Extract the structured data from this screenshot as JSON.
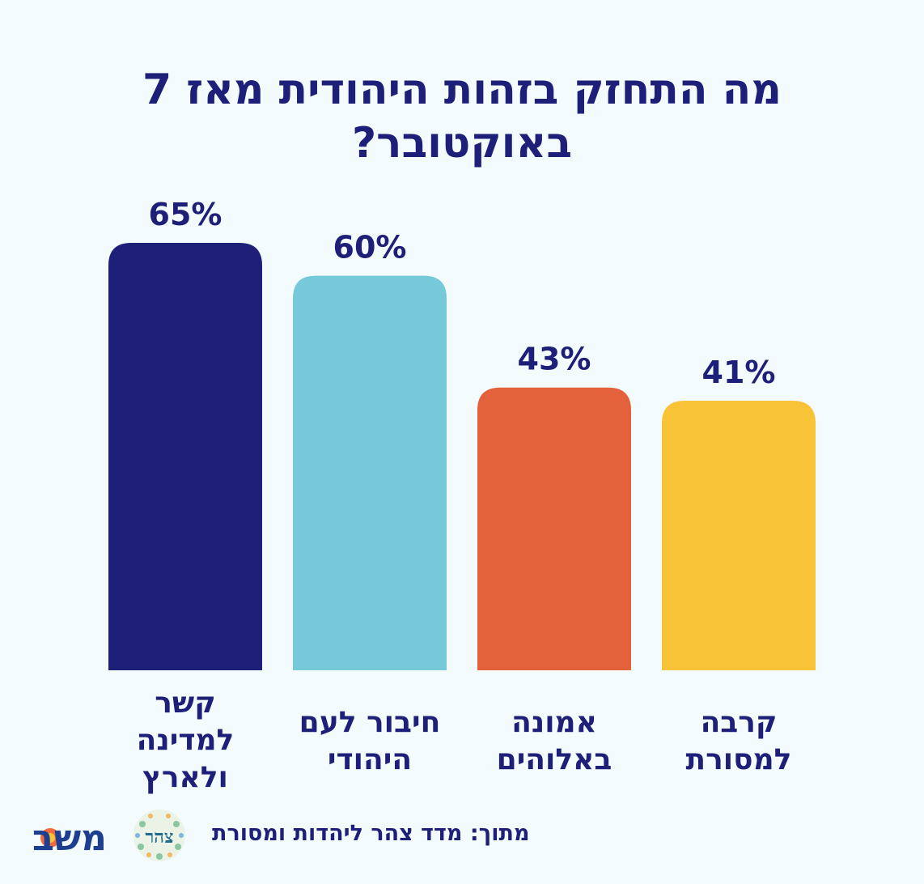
{
  "chart_data": {
    "type": "bar",
    "title_line1": "מה התחזק בזהות היהודית מאז 7",
    "title_line2": "באוקטובר?",
    "categories": [
      [
        "קשר",
        "למדינה",
        "ולארץ"
      ],
      [
        "חיבור לעם",
        "היהודי"
      ],
      [
        "אמונה",
        "באלוהים"
      ],
      [
        "קרבה",
        "למסורת"
      ]
    ],
    "values": [
      65,
      60,
      43,
      41
    ],
    "value_labels": [
      "65%",
      "60%",
      "43%",
      "41%"
    ],
    "bar_colors": [
      "#1e1f78",
      "#76c9d8",
      "#e4623b",
      "#f9c337"
    ],
    "ylim": [
      0,
      65
    ],
    "grid": false
  },
  "footer": {
    "source": "מתוך: מדד צהר ליהדות ומסורת",
    "tzohar_logo_text": "צהר",
    "mashov_logo_text": "משב"
  },
  "colors": {
    "background": "#f3fbfd",
    "text": "#1e1f78"
  }
}
